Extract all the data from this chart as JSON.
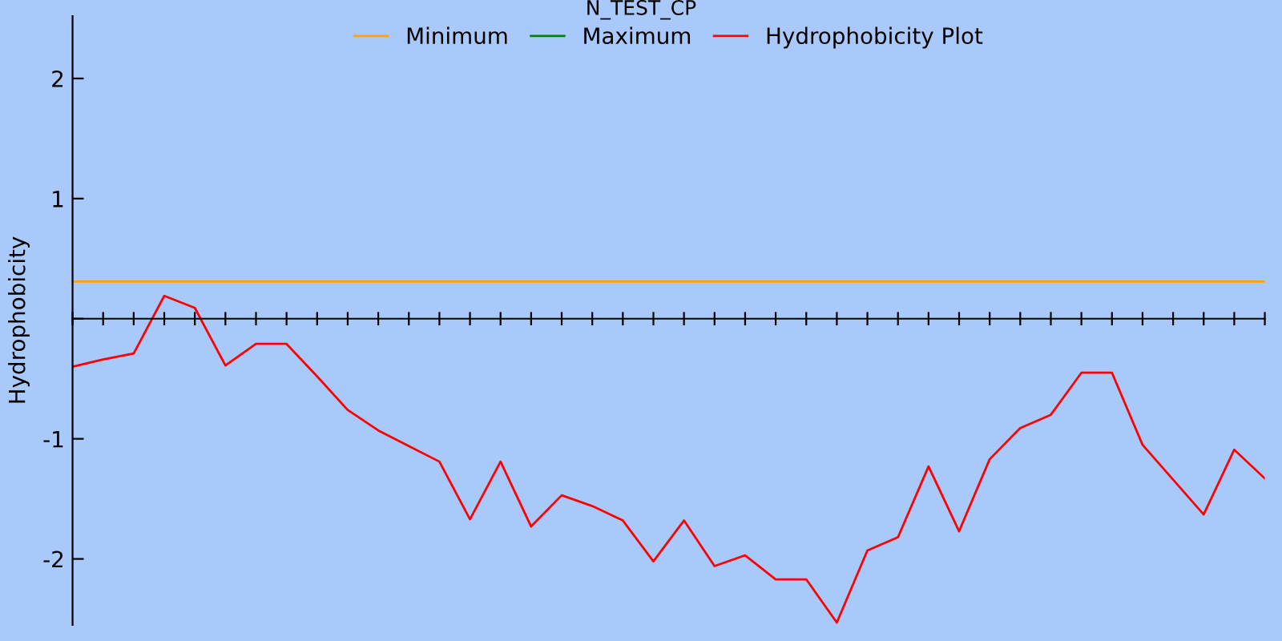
{
  "chart_data": {
    "type": "line",
    "title": "N_TEST_CP",
    "ylabel": "Hydrophobicity",
    "categories": [
      null,
      null,
      null,
      null,
      null,
      null,
      null,
      null,
      null,
      null,
      null,
      null,
      null,
      null,
      null,
      null,
      null,
      null,
      null,
      null,
      null,
      null,
      null,
      null,
      null,
      null,
      null,
      null,
      null,
      null,
      null,
      null,
      null,
      null,
      null,
      null,
      null,
      null,
      null,
      null
    ],
    "series": [
      {
        "name": "Minimum",
        "color": "#ffa500",
        "values": [
          0.31,
          0.31,
          0.31,
          0.31,
          0.31,
          0.31,
          0.31,
          0.31,
          0.31,
          0.31,
          0.31,
          0.31,
          0.31,
          0.31,
          0.31,
          0.31,
          0.31,
          0.31,
          0.31,
          0.31,
          0.31,
          0.31,
          0.31,
          0.31,
          0.31,
          0.31,
          0.31,
          0.31,
          0.31,
          0.31,
          0.31,
          0.31,
          0.31,
          0.31,
          0.31,
          0.31,
          0.31,
          0.31,
          0.31,
          0.31
        ]
      },
      {
        "name": "Maximum",
        "color": "#008000",
        "values": [
          null,
          null,
          null,
          null,
          null,
          null,
          null,
          null,
          null,
          null,
          null,
          null,
          null,
          null,
          null,
          null,
          null,
          null,
          null,
          null,
          null,
          null,
          null,
          null,
          null,
          null,
          null,
          null,
          null,
          null,
          null,
          null,
          null,
          null,
          null,
          null,
          null,
          null,
          null,
          null
        ]
      },
      {
        "name": "Hydrophobicity Plot",
        "color": "#ff0000",
        "values": [
          -0.4,
          -0.34,
          -0.29,
          0.19,
          0.09,
          -0.39,
          -0.21,
          -0.21,
          -0.48,
          -0.76,
          -0.93,
          -1.06,
          -1.19,
          -1.67,
          -1.19,
          -1.73,
          -1.47,
          -1.56,
          -1.68,
          -2.02,
          -1.68,
          -2.06,
          -1.97,
          -2.17,
          -2.17,
          -2.53,
          -1.93,
          -1.82,
          -1.23,
          -1.77,
          -1.17,
          -0.91,
          -0.8,
          -0.45,
          -0.45,
          -1.05,
          -1.34,
          -1.63,
          -1.09,
          -1.33
        ]
      }
    ],
    "ylim": [
      -2.55,
      2.52
    ],
    "yticks": [
      {
        "value": -2,
        "label": "-2"
      },
      {
        "value": -1,
        "label": "-1"
      },
      {
        "value": 0,
        "label": null
      },
      1,
      2
    ],
    "legend": "top",
    "marker": "none",
    "line_style": "solid"
  }
}
